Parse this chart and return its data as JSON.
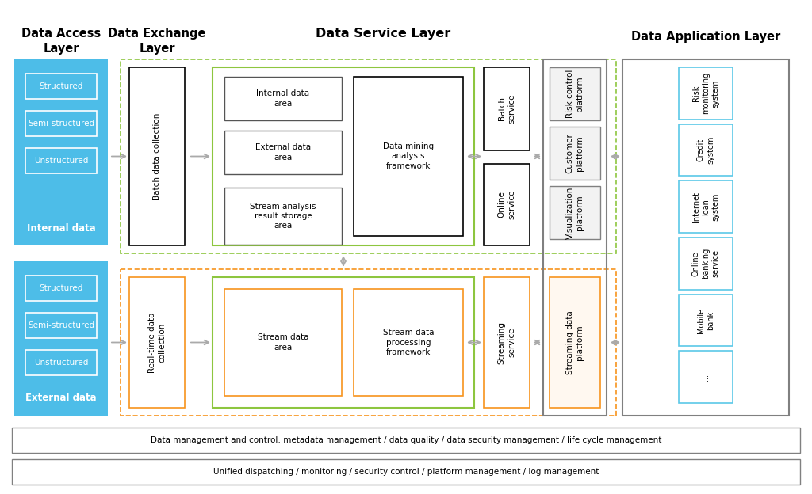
{
  "bg_color": "#ffffff",
  "title_fontsize": 10.5,
  "label_fontsize": 8.5,
  "small_fontsize": 7.5,
  "layer_titles": {
    "access": "Data Access\nLayer",
    "exchange": "Data Exchange\nLayer",
    "service": "Data Service Layer",
    "application": "Data Application Layer"
  },
  "internal_boxes": [
    "Structured",
    "Semi-structured",
    "Unstructured"
  ],
  "internal_label": "Internal data",
  "external_boxes": [
    "Structured",
    "Semi-structured",
    "Unstructured"
  ],
  "external_label": "External data",
  "batch_collection_label": "Batch data collection",
  "realtime_collection_label": "Real-time data\ncollection",
  "data_service_batch_boxes": [
    "Internal data\narea",
    "External data\narea",
    "Stream analysis\nresult storage\narea"
  ],
  "data_mining_label": "Data mining\nanalysis\nframework",
  "batch_service_label": "Batch\nservice",
  "online_service_label": "Online\nservice",
  "stream_data_area_label": "Stream data\narea",
  "stream_processing_label": "Stream data\nprocessing\nframework",
  "streaming_service_label": "Streaming\nservice",
  "platforms_batch": [
    "Risk control\nplatform",
    "Customer\nplatform",
    "Visualization\nplatform"
  ],
  "platforms_stream": [
    "Streaming data\nplatform"
  ],
  "app_boxes": [
    "Risk\nmonitoring\nsystem",
    "Credit\nsystem",
    "Internet\nloan\nsystem",
    "Online\nbanking\nservice",
    "Mobile\nbank",
    "..."
  ],
  "footer1": "Data management and control: metadata management / data quality / data security management / life cycle management",
  "footer2": "Unified dispatching / monitoring / security control / platform management / log management",
  "blue_fill": "#4DBDE8",
  "white_text": "#ffffff",
  "green_border": "#8DC63F",
  "orange_border": "#F7941D",
  "gray_border": "#808080",
  "light_blue_border": "#5BC8E8",
  "arrow_color": "#AAAAAA"
}
